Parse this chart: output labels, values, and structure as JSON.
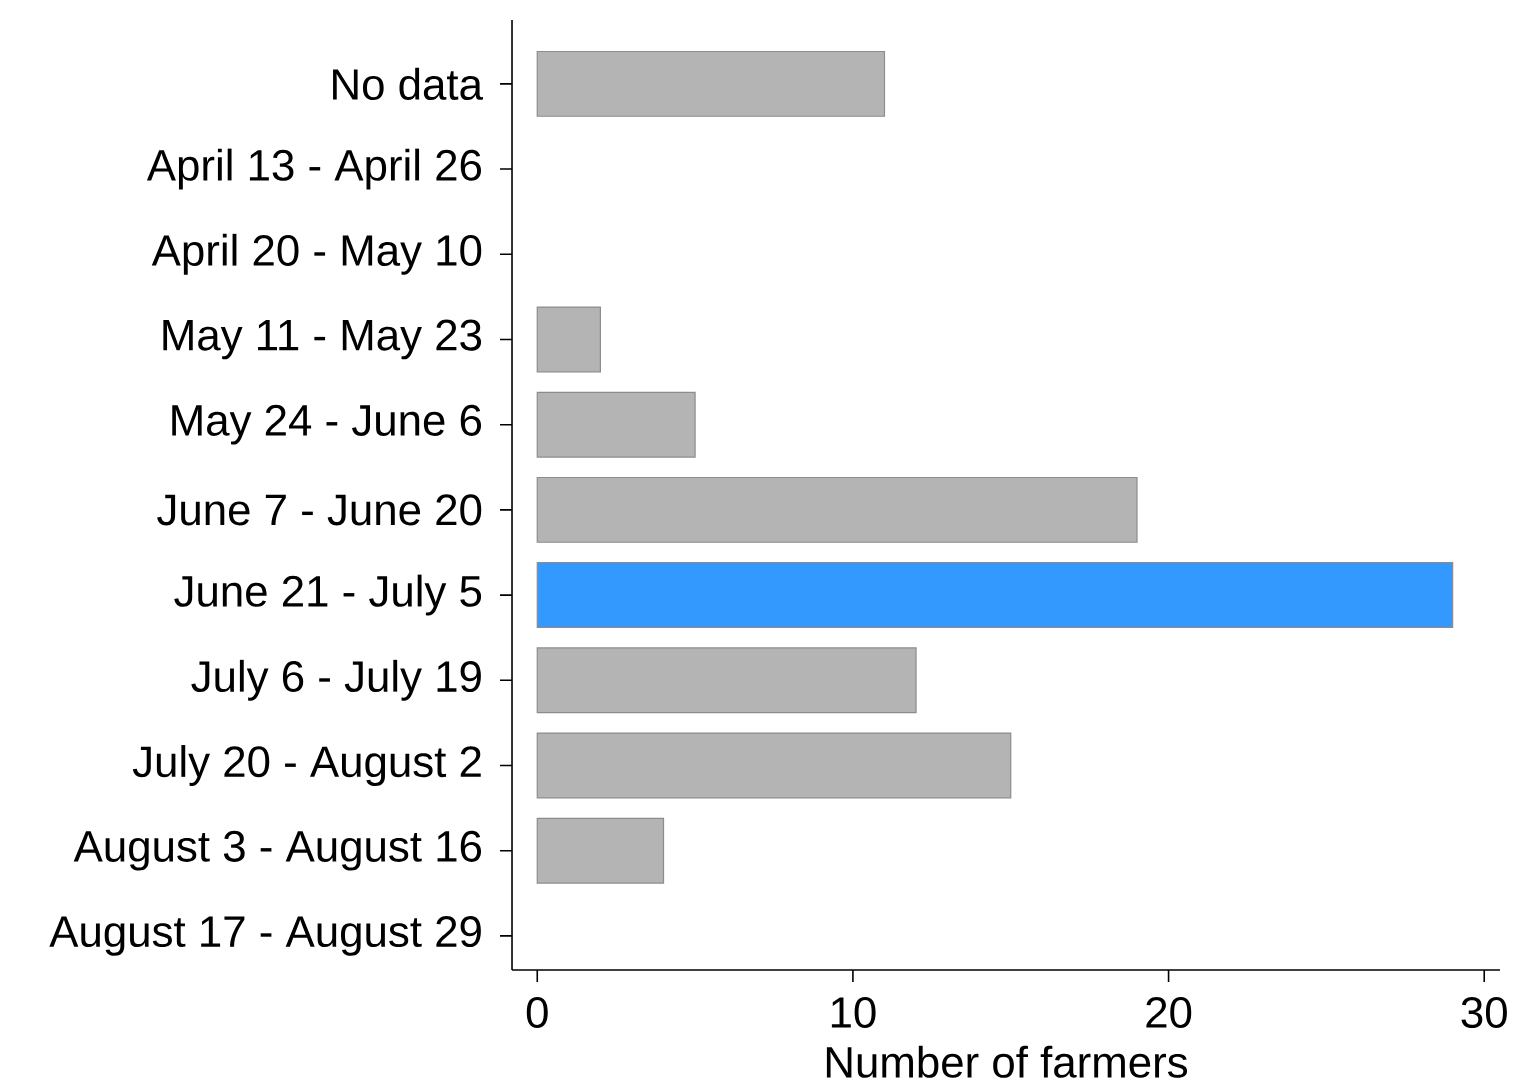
{
  "chart_data": {
    "type": "bar",
    "orientation": "horizontal",
    "xlabel": "Number of farmers",
    "categories": [
      "No data",
      "April 13 - April 26",
      "April 20 - May 10",
      "May 11 - May 23",
      "May 24 - June 6",
      "June 7 - June 20",
      "June 21 - July 5",
      "July 6 - July 19",
      "July 20 - August 2",
      "August 3 - August 16",
      "August 17 - August 29"
    ],
    "values": [
      11,
      0,
      0,
      2,
      5,
      19,
      29,
      12,
      15,
      4,
      0
    ],
    "colors": [
      "#b4b4b4",
      "#b4b4b4",
      "#b4b4b4",
      "#b4b4b4",
      "#b4b4b4",
      "#b4b4b4",
      "#3399ff",
      "#b4b4b4",
      "#b4b4b4",
      "#b4b4b4",
      "#b4b4b4"
    ],
    "xlim": [
      -0.8,
      30.5
    ],
    "xticks": [
      0,
      10,
      20,
      30
    ]
  }
}
